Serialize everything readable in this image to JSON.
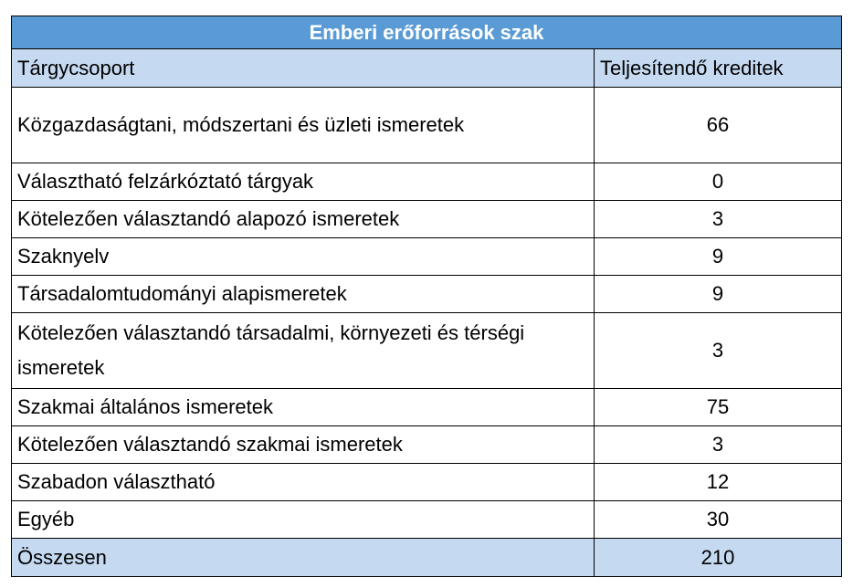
{
  "table": {
    "title": "Emberi erőforrások szak",
    "header": [
      "Tárgycsoport",
      "Teljesítendő kreditek"
    ],
    "rows": [
      [
        "Közgazdaságtani, módszertani és üzleti ismeretek",
        66
      ],
      [
        "Választható felzárkóztató tárgyak",
        0
      ],
      [
        "Kötelezően választandó alapozó ismeretek",
        3
      ],
      [
        "Szaknyelv",
        9
      ],
      [
        "Társadalomtudományi alapismeretek",
        9
      ],
      [
        "Kötelezően választandó társadalmi, környezeti és térségi ismeretek",
        3
      ],
      [
        "Szakmai általános ismeretek",
        75
      ],
      [
        "Kötelezően választandó szakmai ismeretek",
        3
      ],
      [
        "Szabadon választható",
        12
      ],
      [
        "Egyéb",
        30
      ]
    ],
    "total": [
      "Összesen",
      210
    ]
  }
}
